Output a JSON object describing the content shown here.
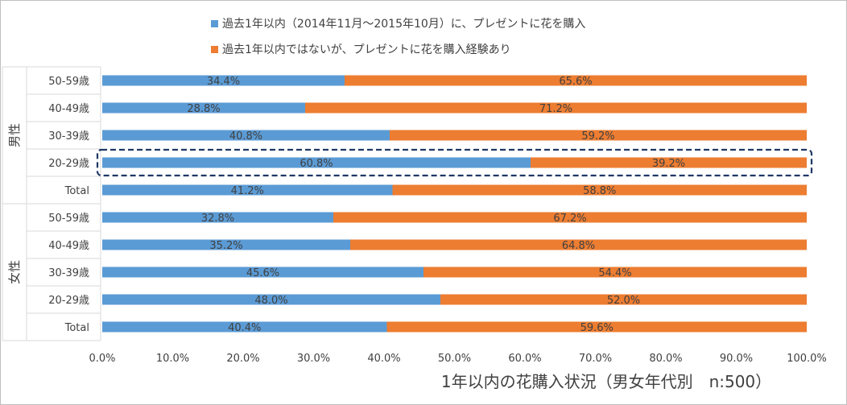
{
  "colors": {
    "series1": "#5b9bd5",
    "series2": "#ed7d31",
    "text": "#404040",
    "grid": "#d9d9d9",
    "highlight": "#1f3864"
  },
  "chart_data": {
    "type": "bar",
    "orientation": "horizontal",
    "stacked": true,
    "title": "1年以内の花購入状況（男女年代別　n:500）",
    "groups": [
      {
        "name": "男性",
        "categories": [
          "50-59歳",
          "40-49歳",
          "30-39歳",
          "20-29歳",
          "Total"
        ]
      },
      {
        "name": "女性",
        "categories": [
          "50-59歳",
          "40-49歳",
          "30-39歳",
          "20-29歳",
          "Total"
        ]
      }
    ],
    "series": [
      {
        "name": "過去1年以内（2014年11月～2015年10月）に、プレゼントに花を購入",
        "values": [
          34.4,
          28.8,
          40.8,
          60.8,
          41.2,
          32.8,
          35.2,
          45.6,
          48.0,
          40.4
        ]
      },
      {
        "name": "過去1年以内ではないが、プレゼントに花を購入経験あり",
        "values": [
          65.6,
          71.2,
          59.2,
          39.2,
          58.8,
          67.2,
          64.8,
          54.4,
          52.0,
          59.6
        ]
      }
    ],
    "data_labels": [
      [
        "34.4%",
        "28.8%",
        "40.8%",
        "60.8%",
        "41.2%",
        "32.8%",
        "35.2%",
        "45.6%",
        "48.0%",
        "40.4%"
      ],
      [
        "65.6%",
        "71.2%",
        "59.2%",
        "39.2%",
        "58.8%",
        "67.2%",
        "64.8%",
        "54.4%",
        "52.0%",
        "59.6%"
      ]
    ],
    "x_ticks": [
      "0.0%",
      "10.0%",
      "20.0%",
      "30.0%",
      "40.0%",
      "50.0%",
      "60.0%",
      "70.0%",
      "80.0%",
      "90.0%",
      "100.0%"
    ],
    "xlim": [
      0,
      100
    ],
    "legend_position": "top",
    "highlighted": {
      "group": "男性",
      "category": "20-29歳"
    }
  }
}
